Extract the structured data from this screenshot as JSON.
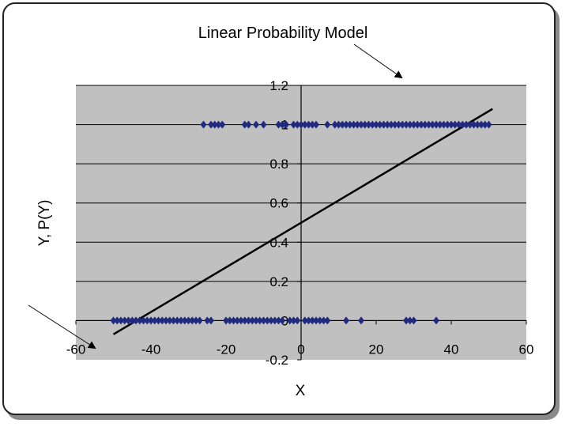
{
  "chart_data": {
    "type": "scatter",
    "title": "Linear Probability Model",
    "xlabel": "X",
    "ylabel": "Y, P(Y)",
    "xlim": [
      -60,
      60
    ],
    "ylim": [
      -0.2,
      1.2
    ],
    "xticks": [
      -60,
      -40,
      -20,
      0,
      20,
      40,
      60
    ],
    "yticks": [
      -0.2,
      0,
      0.2,
      0.4,
      0.6,
      0.8,
      1,
      1.2
    ],
    "grid": "horizontal",
    "legend": "none",
    "colors": {
      "plot_area": "#c0c0c0",
      "points": "#1f2a80",
      "line": "#000000",
      "gridline": "#000000"
    },
    "series": [
      {
        "kind": "points",
        "x": [
          -26,
          -24,
          -23,
          -22,
          -21,
          -15,
          -14,
          -12,
          -10,
          -6,
          -5,
          -4,
          -2,
          -1,
          0,
          1,
          2,
          3,
          4,
          7,
          9,
          10,
          11,
          12,
          13,
          14,
          15,
          16,
          17,
          18,
          19,
          20,
          21,
          22,
          23,
          24,
          25,
          26,
          27,
          28,
          29,
          30,
          31,
          32,
          33,
          34,
          35,
          36,
          37,
          38,
          39,
          40,
          41,
          42,
          43,
          44,
          45,
          46,
          47,
          48,
          49,
          50
        ],
        "y": [
          1,
          1,
          1,
          1,
          1,
          1,
          1,
          1,
          1,
          1,
          1,
          1,
          1,
          1,
          1,
          1,
          1,
          1,
          1,
          1,
          1,
          1,
          1,
          1,
          1,
          1,
          1,
          1,
          1,
          1,
          1,
          1,
          1,
          1,
          1,
          1,
          1,
          1,
          1,
          1,
          1,
          1,
          1,
          1,
          1,
          1,
          1,
          1,
          1,
          1,
          1,
          1,
          1,
          1,
          1,
          1,
          1,
          1,
          1,
          1,
          1,
          1
        ]
      },
      {
        "kind": "points",
        "x": [
          -50,
          -49,
          -48,
          -47,
          -46,
          -45,
          -44,
          -43,
          -42,
          -41,
          -40,
          -39,
          -38,
          -37,
          -36,
          -35,
          -34,
          -33,
          -32,
          -31,
          -30,
          -29,
          -28,
          -27,
          -25,
          -24,
          -20,
          -19,
          -18,
          -17,
          -16,
          -15,
          -14,
          -13,
          -12,
          -11,
          -10,
          -9,
          -8,
          -7,
          -6,
          -5,
          -3,
          -2,
          -1,
          1,
          2,
          3,
          4,
          5,
          6,
          7,
          12,
          16,
          28,
          29,
          30,
          36
        ],
        "y": [
          0,
          0,
          0,
          0,
          0,
          0,
          0,
          0,
          0,
          0,
          0,
          0,
          0,
          0,
          0,
          0,
          0,
          0,
          0,
          0,
          0,
          0,
          0,
          0,
          0,
          0,
          0,
          0,
          0,
          0,
          0,
          0,
          0,
          0,
          0,
          0,
          0,
          0,
          0,
          0,
          0,
          0,
          0,
          0,
          0,
          0,
          0,
          0,
          0,
          0,
          0,
          0,
          0,
          0,
          0,
          0,
          0,
          0
        ]
      },
      {
        "kind": "line",
        "x": [
          -50,
          51
        ],
        "y": [
          -0.07,
          1.08
        ]
      }
    ]
  }
}
